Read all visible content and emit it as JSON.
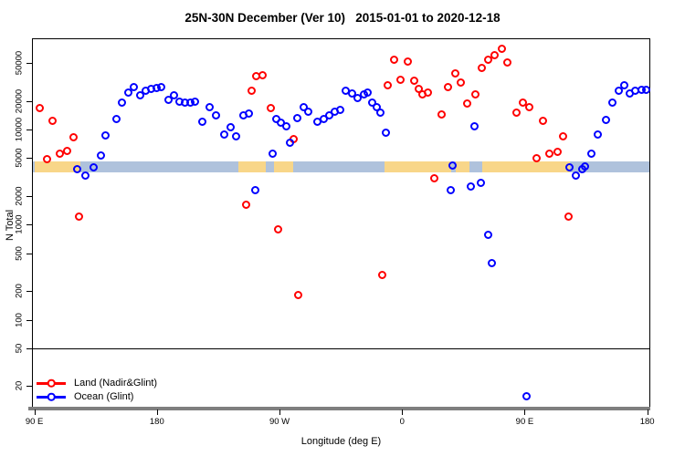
{
  "title": "25N-30N December (Ver 10)   2015-01-01 to 2020-12-18",
  "axes": {
    "x_label": "Longitude (deg E)",
    "y_label": "N Total",
    "x_ticks": [
      {
        "lon": 90,
        "label": "90 E"
      },
      {
        "lon": 180,
        "label": "180"
      },
      {
        "lon": 270,
        "label": "90 W"
      },
      {
        "lon": 360,
        "label": "0"
      },
      {
        "lon": 450,
        "label": "90 E"
      },
      {
        "lon": 540,
        "label": "180"
      }
    ],
    "y_ticks": [
      {
        "value": 20,
        "label": "20"
      },
      {
        "value": 50,
        "label": "50"
      },
      {
        "value": 100,
        "label": "100"
      },
      {
        "value": 200,
        "label": "200"
      },
      {
        "value": 500,
        "label": "500"
      },
      {
        "value": 1000,
        "label": "1000"
      },
      {
        "value": 2000,
        "label": "2000"
      },
      {
        "value": 5000,
        "label": "5000"
      },
      {
        "value": 10000,
        "label": "10000"
      },
      {
        "value": 20000,
        "label": "20000"
      },
      {
        "value": 50000,
        "label": "50000"
      }
    ],
    "x_range": [
      90,
      540
    ],
    "y_scale": "log",
    "axis_line_color": "#7f7f7f"
  },
  "map_strip": {
    "description": "land/ocean map band for 25N-30N latitude strip",
    "ocean_color": "#afc2dc",
    "land_color": "#f8d689",
    "land_segments": [
      {
        "from": 90,
        "to": 123.5
      },
      {
        "from": 240,
        "to": 260
      },
      {
        "from": 266,
        "to": 280
      },
      {
        "from": 347,
        "to": 483
      }
    ],
    "ocean_notches": [
      {
        "from": 396,
        "to": 399.5
      },
      {
        "from": 409.5,
        "to": 419
      }
    ]
  },
  "chart_data": {
    "type": "scatter",
    "title": "25N-30N December (Ver 10)   2015-01-01 to 2020-12-18",
    "xlabel": "Longitude (deg E)",
    "ylabel": "N Total",
    "xlim": [
      90,
      540
    ],
    "ylim_log": [
      10,
      90000
    ],
    "reference_line_y": 50,
    "legend_position": "bottom-left",
    "series": [
      {
        "name": "Land (Nadir&Glint)",
        "color": "#ff0000",
        "marker": "open-circle",
        "points": [
          [
            94.5,
            16600
          ],
          [
            104,
            12200
          ],
          [
            99.5,
            4800
          ],
          [
            109,
            5500
          ],
          [
            114.5,
            5900
          ],
          [
            119,
            8200
          ],
          [
            123,
            1200
          ],
          [
            246,
            1600
          ],
          [
            250,
            25200
          ],
          [
            253,
            36000
          ],
          [
            258,
            37000
          ],
          [
            264,
            16600
          ],
          [
            269.5,
            880
          ],
          [
            281,
            7800
          ],
          [
            284,
            180
          ],
          [
            346,
            290
          ],
          [
            350,
            28800
          ],
          [
            354.5,
            53000
          ],
          [
            359,
            33000
          ],
          [
            364.5,
            51000
          ],
          [
            369,
            32000
          ],
          [
            372.5,
            26400
          ],
          [
            375.5,
            23100
          ],
          [
            379.5,
            24100
          ],
          [
            384,
            3000
          ],
          [
            389.5,
            14200
          ],
          [
            394,
            27600
          ],
          [
            399.5,
            38400
          ],
          [
            403.5,
            31000
          ],
          [
            408,
            18500
          ],
          [
            414,
            23100
          ],
          [
            419,
            44000
          ],
          [
            423.5,
            53400
          ],
          [
            428,
            59600
          ],
          [
            433.5,
            69600
          ],
          [
            437.5,
            50000
          ],
          [
            444.5,
            14800
          ],
          [
            449,
            18900
          ],
          [
            453.5,
            17000
          ],
          [
            459,
            4900
          ],
          [
            464,
            12200
          ],
          [
            468.5,
            5500
          ],
          [
            474.5,
            5700
          ],
          [
            478.5,
            8400
          ],
          [
            482.5,
            1200
          ]
        ]
      },
      {
        "name": "Ocean (Glint)",
        "color": "#0000ff",
        "marker": "open-circle",
        "points": [
          [
            122,
            3800
          ],
          [
            128,
            3200
          ],
          [
            134,
            3900
          ],
          [
            139,
            5300
          ],
          [
            142.5,
            8600
          ],
          [
            150.5,
            12700
          ],
          [
            154.5,
            18900
          ],
          [
            159.5,
            24100
          ],
          [
            163.5,
            27600
          ],
          [
            168,
            22600
          ],
          [
            172,
            25200
          ],
          [
            176,
            26400
          ],
          [
            180,
            27000
          ],
          [
            183.5,
            27600
          ],
          [
            189,
            20200
          ],
          [
            193,
            22600
          ],
          [
            197,
            19400
          ],
          [
            201,
            18900
          ],
          [
            205,
            18900
          ],
          [
            208.5,
            19400
          ],
          [
            213.5,
            11900
          ],
          [
            219,
            17000
          ],
          [
            223.5,
            13900
          ],
          [
            229.5,
            8700
          ],
          [
            234.5,
            10400
          ],
          [
            238.5,
            8400
          ],
          [
            244,
            13900
          ],
          [
            248,
            14500
          ],
          [
            252.5,
            2270
          ],
          [
            265.5,
            5500
          ],
          [
            268,
            12700
          ],
          [
            271.5,
            11600
          ],
          [
            275.5,
            10700
          ],
          [
            278,
            7200
          ],
          [
            283.5,
            13000
          ],
          [
            288,
            17000
          ],
          [
            291.5,
            15200
          ],
          [
            298,
            11900
          ],
          [
            303,
            12700
          ],
          [
            307,
            13900
          ],
          [
            311,
            15200
          ],
          [
            315,
            15900
          ],
          [
            319,
            25200
          ],
          [
            323.5,
            23600
          ],
          [
            327.5,
            21100
          ],
          [
            332.5,
            23100
          ],
          [
            335,
            24100
          ],
          [
            338.5,
            18900
          ],
          [
            341.5,
            17000
          ],
          [
            344.5,
            14800
          ],
          [
            348.5,
            9100
          ],
          [
            396,
            2270
          ],
          [
            397.5,
            4100
          ],
          [
            411,
            2480
          ],
          [
            413.5,
            10700
          ],
          [
            418,
            2700
          ],
          [
            423.5,
            770
          ],
          [
            426,
            390
          ],
          [
            451.5,
            15.5
          ],
          [
            483,
            3900
          ],
          [
            488,
            3200
          ],
          [
            492.5,
            3800
          ],
          [
            494.5,
            4000
          ],
          [
            499.5,
            5500
          ],
          [
            504,
            8700
          ],
          [
            510,
            12400
          ],
          [
            514.5,
            18900
          ],
          [
            519.5,
            25200
          ],
          [
            523.5,
            28800
          ],
          [
            527.5,
            23600
          ],
          [
            531.5,
            25200
          ],
          [
            536.5,
            25800
          ],
          [
            539.5,
            25800
          ]
        ]
      }
    ]
  }
}
